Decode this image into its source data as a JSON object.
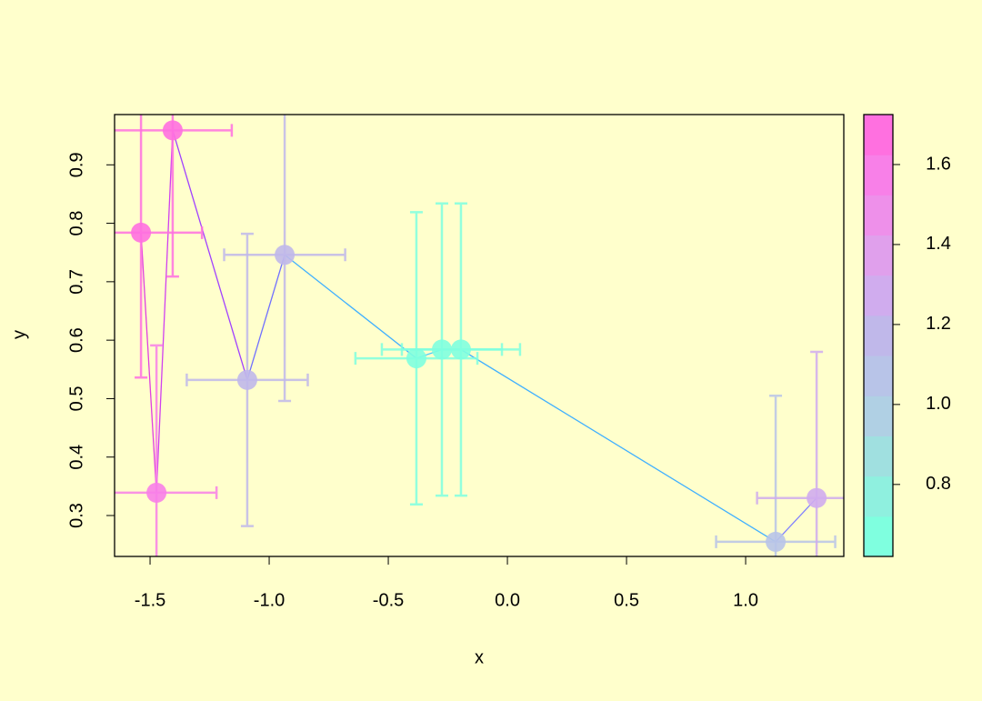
{
  "chart_data": {
    "type": "scatter",
    "xlabel": "x",
    "ylabel": "y",
    "x": [
      -1.538,
      -1.473,
      -1.405,
      -1.092,
      -0.935,
      -0.382,
      -0.275,
      -0.195,
      1.126,
      1.298
    ],
    "values": [
      0.784,
      0.339,
      0.959,
      0.532,
      0.746,
      0.569,
      0.584,
      0.584,
      0.255,
      0.33
    ],
    "x_error": [
      0.256,
      0.252,
      0.248,
      0.254,
      0.254,
      0.256,
      0.252,
      0.248,
      0.25,
      0.25
    ],
    "y_error": [
      0.248,
      0.252,
      0.25,
      0.25,
      0.25,
      0.25,
      0.25,
      0.25,
      0.25,
      0.25
    ],
    "colvar": [
      1.65,
      1.55,
      1.7,
      1.15,
      1.15,
      0.7,
      0.7,
      0.7,
      1.1,
      1.25
    ],
    "line_colors": [
      "#e040e0",
      "#d040f0",
      "#a040ff",
      "#7070ff",
      "#40b0ff",
      "#40c8ff",
      "#40c8ff",
      "#40b0ff",
      "#8080ff"
    ],
    "palette": [
      "#7fffdf",
      "#8ff0df",
      "#a0e0e0",
      "#b0d0e4",
      "#b8c4e8",
      "#c0b8ea",
      "#d0acee",
      "#e0a0ec",
      "#ee90ea",
      "#f880e8",
      "#ff70e0"
    ],
    "xlim": [
      -1.649,
      1.412
    ],
    "ylim": [
      0.23,
      0.986
    ],
    "clim": [
      0.62,
      1.725
    ],
    "xticks": [
      -1.5,
      {
        "value": -1,
        "label": "-1.0"
      },
      -0.5,
      {
        "value": 0,
        "label": "0.0"
      },
      0.5,
      {
        "value": 1,
        "label": "1.0"
      }
    ],
    "yticks": [
      0.3,
      0.4,
      0.5,
      0.6,
      0.7,
      0.8,
      0.9
    ],
    "cticks": [
      0.8,
      {
        "value": 1,
        "label": "1.0"
      },
      1.2,
      1.4,
      1.6
    ]
  }
}
